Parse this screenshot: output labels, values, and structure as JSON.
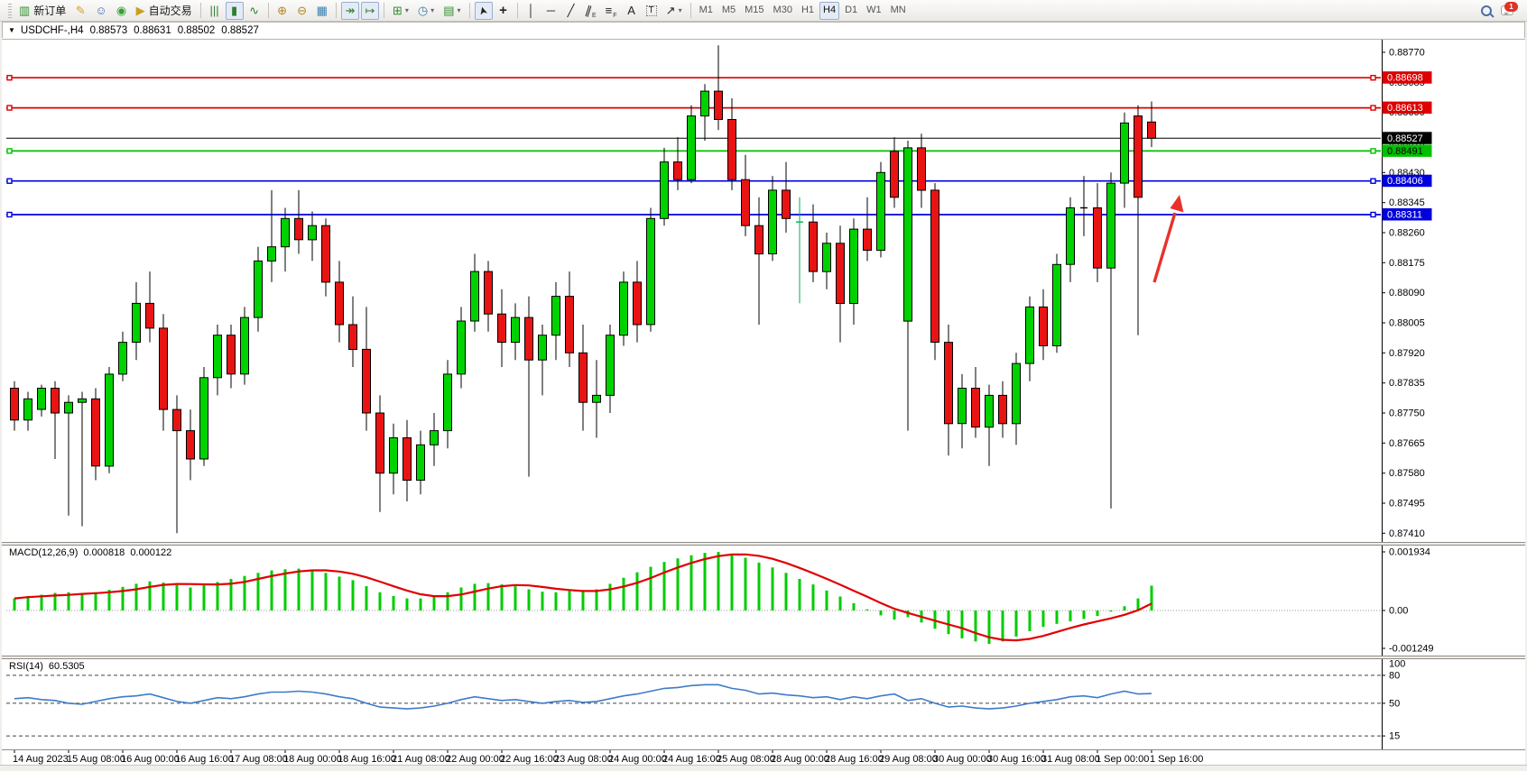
{
  "toolbar": {
    "groups": [
      [
        {
          "name": "new-order-button",
          "glyph": "▥",
          "glyph_color": "#2f8f2f",
          "label": "新订单"
        },
        {
          "name": "crayon-style-button",
          "glyph": "✎",
          "glyph_color": "#d9a21b"
        },
        {
          "name": "community-profile-button",
          "glyph": "☺",
          "glyph_color": "#3b6fb5"
        },
        {
          "name": "signals-broadcast-button",
          "glyph": "◉",
          "glyph_color": "#33a033"
        },
        {
          "name": "auto-trading-button",
          "glyph": "▶",
          "glyph_color": "#c8a020",
          "label": "自动交易",
          "dot_color": "#d23b2f"
        }
      ],
      [
        {
          "name": "bar-chart-type-button",
          "glyph": "|||",
          "glyph_color": "#2f7f2f"
        },
        {
          "name": "candlestick-chart-type-button",
          "glyph": "▮",
          "glyph_color": "#2f7f2f",
          "active": true
        },
        {
          "name": "line-chart-type-button",
          "glyph": "∿",
          "glyph_color": "#2f7f2f"
        }
      ],
      [
        {
          "name": "zoom-in-button",
          "glyph": "⊕",
          "glyph_color": "#b08820"
        },
        {
          "name": "zoom-out-button",
          "glyph": "⊖",
          "glyph_color": "#b08820"
        },
        {
          "name": "tile-windows-button",
          "glyph": "▦",
          "glyph_color": "#3a7fae"
        }
      ],
      [
        {
          "name": "auto-scroll-button",
          "glyph": "↠",
          "glyph_color": "#2f7f2f",
          "active": true
        },
        {
          "name": "chart-shift-button",
          "glyph": "↦",
          "glyph_color": "#2f7f2f",
          "active": true
        }
      ],
      [
        {
          "name": "new-chart-button",
          "glyph": "⊞",
          "glyph_color": "#2f8f2f",
          "caret": true
        },
        {
          "name": "profiles-button",
          "glyph": "◷",
          "glyph_color": "#3a7fae",
          "caret": true
        },
        {
          "name": "indicators-list-button",
          "glyph": "▤",
          "glyph_color": "#2f8f2f",
          "caret": true
        }
      ],
      [
        {
          "name": "cursor-button",
          "glyph": "➤",
          "glyph_color": "#222",
          "active": true
        },
        {
          "name": "crosshair-button",
          "glyph": "+",
          "glyph_color": "#222"
        }
      ],
      [
        {
          "name": "vertical-line-button",
          "glyph": "│",
          "glyph_color": "#222"
        },
        {
          "name": "horizontal-line-button",
          "glyph": "─",
          "glyph_color": "#222"
        },
        {
          "name": "trendline-button",
          "glyph": "╱",
          "glyph_color": "#222"
        },
        {
          "name": "equidistant-channel-button",
          "glyph": "∥",
          "glyph_color": "#222",
          "sub": "E"
        },
        {
          "name": "fibonacci-button",
          "glyph": "≡",
          "glyph_color": "#222",
          "sub": "F"
        },
        {
          "name": "text-button",
          "glyph": "A",
          "glyph_color": "#222"
        },
        {
          "name": "text-label-button",
          "glyph": "T",
          "glyph_color": "#222"
        },
        {
          "name": "arrows-shapes-button",
          "glyph": "↗",
          "glyph_color": "#222",
          "caret": true
        }
      ],
      [
        {
          "name": "timeframe-m1-button",
          "glyph": "M1",
          "tf": true
        },
        {
          "name": "timeframe-m5-button",
          "glyph": "M5",
          "tf": true
        },
        {
          "name": "timeframe-m15-button",
          "glyph": "M15",
          "tf": true
        },
        {
          "name": "timeframe-m30-button",
          "glyph": "M30",
          "tf": true
        },
        {
          "name": "timeframe-h1-button",
          "glyph": "H1",
          "tf": true
        },
        {
          "name": "timeframe-h4-button",
          "glyph": "H4",
          "tf": true,
          "active": true
        },
        {
          "name": "timeframe-d1-button",
          "glyph": "D1",
          "tf": true
        },
        {
          "name": "timeframe-w1-button",
          "glyph": "W1",
          "tf": true
        },
        {
          "name": "timeframe-mn-button",
          "glyph": "MN",
          "tf": true
        }
      ]
    ],
    "chat_badge": "1"
  },
  "chart": {
    "symbol_period": "USDCHF-,H4",
    "open": "0.88573",
    "high": "0.88631",
    "low": "0.88502",
    "close": "0.88527"
  },
  "price_axis": {
    "ticks": [
      "0.88770",
      "0.88685",
      "0.88600",
      "0.88515",
      "0.88430",
      "0.88345",
      "0.88260",
      "0.88175",
      "0.88090",
      "0.88005",
      "0.87920",
      "0.87835",
      "0.87750",
      "0.87665",
      "0.87580",
      "0.87495",
      "0.87410"
    ],
    "badges": [
      {
        "value": "0.88698",
        "color": "#dd0000",
        "text_color": "#ffffff"
      },
      {
        "value": "0.88613",
        "color": "#dd0000",
        "text_color": "#ffffff"
      },
      {
        "value": "0.88527",
        "color": "#000000",
        "text_color": "#ffffff"
      },
      {
        "value": "0.88491",
        "color": "#00c000",
        "text_color": "#000000"
      },
      {
        "value": "0.88406",
        "color": "#0000dd",
        "text_color": "#ffffff"
      },
      {
        "value": "0.88311",
        "color": "#0000dd",
        "text_color": "#ffffff"
      }
    ]
  },
  "chart_data": {
    "type": "candlestick",
    "title": "USDCHF-,H4",
    "current_bar_ohlc": [
      0.88573,
      0.88631,
      0.88502,
      0.88527
    ],
    "ylim": [
      0.87385,
      0.88806
    ],
    "up_color": "#00d200",
    "down_color": "#e81414",
    "horizontal_lines": [
      {
        "price": 0.88698,
        "color": "#dd0000"
      },
      {
        "price": 0.88613,
        "color": "#dd0000"
      },
      {
        "price": 0.88527,
        "color": "#000000",
        "role": "current-price"
      },
      {
        "price": 0.88491,
        "color": "#00c000"
      },
      {
        "price": 0.88406,
        "color": "#0000dd"
      },
      {
        "price": 0.88311,
        "color": "#0000dd"
      }
    ],
    "x_labels": [
      "14 Aug 2023",
      "15 Aug 08:00",
      "16 Aug 00:00",
      "16 Aug 16:00",
      "17 Aug 08:00",
      "18 Aug 00:00",
      "18 Aug 16:00",
      "21 Aug 08:00",
      "22 Aug 00:00",
      "22 Aug 16:00",
      "23 Aug 08:00",
      "24 Aug 00:00",
      "24 Aug 16:00",
      "25 Aug 08:00",
      "28 Aug 00:00",
      "28 Aug 16:00",
      "29 Aug 08:00",
      "30 Aug 00:00",
      "30 Aug 16:00",
      "31 Aug 08:00",
      "1 Sep 00:00",
      "1 Sep 16:00"
    ],
    "candles": [
      [
        0.8782,
        0.8784,
        0.877,
        0.8773
      ],
      [
        0.8773,
        0.8781,
        0.877,
        0.8779
      ],
      [
        0.8776,
        0.8783,
        0.8774,
        0.8782
      ],
      [
        0.8782,
        0.8784,
        0.8762,
        0.8775
      ],
      [
        0.8775,
        0.878,
        0.8746,
        0.8778
      ],
      [
        0.8778,
        0.8781,
        0.8743,
        0.8779
      ],
      [
        0.8779,
        0.8782,
        0.8756,
        0.876
      ],
      [
        0.876,
        0.8788,
        0.8758,
        0.8786
      ],
      [
        0.8786,
        0.8798,
        0.8784,
        0.8795
      ],
      [
        0.8795,
        0.8812,
        0.879,
        0.8806
      ],
      [
        0.8806,
        0.8815,
        0.8795,
        0.8799
      ],
      [
        0.8799,
        0.8803,
        0.877,
        0.8776
      ],
      [
        0.8776,
        0.878,
        0.8741,
        0.877
      ],
      [
        0.877,
        0.8776,
        0.8756,
        0.8762
      ],
      [
        0.8762,
        0.8788,
        0.876,
        0.8785
      ],
      [
        0.8785,
        0.88,
        0.878,
        0.8797
      ],
      [
        0.8797,
        0.88,
        0.8782,
        0.8786
      ],
      [
        0.8786,
        0.8805,
        0.8783,
        0.8802
      ],
      [
        0.8802,
        0.8822,
        0.8798,
        0.8818
      ],
      [
        0.8818,
        0.8838,
        0.8812,
        0.8822
      ],
      [
        0.8822,
        0.8833,
        0.8815,
        0.883
      ],
      [
        0.883,
        0.8838,
        0.882,
        0.8824
      ],
      [
        0.8824,
        0.8832,
        0.8818,
        0.8828
      ],
      [
        0.8828,
        0.883,
        0.8808,
        0.8812
      ],
      [
        0.8812,
        0.8818,
        0.8795,
        0.88
      ],
      [
        0.88,
        0.8808,
        0.8788,
        0.8793
      ],
      [
        0.8793,
        0.8805,
        0.877,
        0.8775
      ],
      [
        0.8775,
        0.878,
        0.8747,
        0.8758
      ],
      [
        0.8758,
        0.8772,
        0.8752,
        0.8768
      ],
      [
        0.8768,
        0.8773,
        0.875,
        0.8756
      ],
      [
        0.8756,
        0.877,
        0.8752,
        0.8766
      ],
      [
        0.8766,
        0.8775,
        0.876,
        0.877
      ],
      [
        0.877,
        0.879,
        0.8765,
        0.8786
      ],
      [
        0.8786,
        0.8805,
        0.8782,
        0.8801
      ],
      [
        0.8801,
        0.882,
        0.8798,
        0.8815
      ],
      [
        0.8815,
        0.8818,
        0.8798,
        0.8803
      ],
      [
        0.8803,
        0.881,
        0.8788,
        0.8795
      ],
      [
        0.8795,
        0.8806,
        0.879,
        0.8802
      ],
      [
        0.8802,
        0.8808,
        0.8757,
        0.879
      ],
      [
        0.879,
        0.88,
        0.878,
        0.8797
      ],
      [
        0.8797,
        0.8812,
        0.879,
        0.8808
      ],
      [
        0.8808,
        0.8815,
        0.8788,
        0.8792
      ],
      [
        0.8792,
        0.88,
        0.877,
        0.8778
      ],
      [
        0.8778,
        0.879,
        0.8768,
        0.878
      ],
      [
        0.878,
        0.88,
        0.8775,
        0.8797
      ],
      [
        0.8797,
        0.8815,
        0.8794,
        0.8812
      ],
      [
        0.8812,
        0.8818,
        0.8795,
        0.88
      ],
      [
        0.88,
        0.8833,
        0.8798,
        0.883
      ],
      [
        0.883,
        0.885,
        0.8828,
        0.8846
      ],
      [
        0.8846,
        0.8853,
        0.8838,
        0.8841
      ],
      [
        0.8841,
        0.8862,
        0.884,
        0.8859
      ],
      [
        0.8859,
        0.8868,
        0.8852,
        0.8866
      ],
      [
        0.8866,
        0.8879,
        0.8855,
        0.8858
      ],
      [
        0.8858,
        0.8864,
        0.8838,
        0.8841
      ],
      [
        0.8841,
        0.8848,
        0.8825,
        0.8828
      ],
      [
        0.8828,
        0.8836,
        0.88,
        0.882
      ],
      [
        0.882,
        0.8842,
        0.8818,
        0.8838
      ],
      [
        0.8838,
        0.8846,
        0.8826,
        0.883
      ],
      [
        0.8829,
        0.8836,
        0.8806,
        0.8829
      ],
      [
        0.8829,
        0.8834,
        0.8812,
        0.8815
      ],
      [
        0.8815,
        0.8826,
        0.881,
        0.8823
      ],
      [
        0.8823,
        0.8828,
        0.8795,
        0.8806
      ],
      [
        0.8806,
        0.883,
        0.88,
        0.8827
      ],
      [
        0.8827,
        0.8836,
        0.8818,
        0.8821
      ],
      [
        0.8821,
        0.8846,
        0.8819,
        0.8843
      ],
      [
        0.8849,
        0.8853,
        0.8833,
        0.8836
      ],
      [
        0.8801,
        0.8852,
        0.877,
        0.885
      ],
      [
        0.885,
        0.8854,
        0.8833,
        0.8838
      ],
      [
        0.8838,
        0.884,
        0.879,
        0.8795
      ],
      [
        0.8795,
        0.88,
        0.8763,
        0.8772
      ],
      [
        0.8772,
        0.8786,
        0.8765,
        0.8782
      ],
      [
        0.8782,
        0.8788,
        0.8768,
        0.8771
      ],
      [
        0.8771,
        0.8783,
        0.876,
        0.878
      ],
      [
        0.878,
        0.8784,
        0.8768,
        0.8772
      ],
      [
        0.8772,
        0.8792,
        0.8766,
        0.8789
      ],
      [
        0.8789,
        0.8808,
        0.8784,
        0.8805
      ],
      [
        0.8805,
        0.881,
        0.879,
        0.8794
      ],
      [
        0.8794,
        0.882,
        0.8792,
        0.8817
      ],
      [
        0.8817,
        0.8836,
        0.8812,
        0.8833
      ],
      [
        0.8833,
        0.8842,
        0.8825,
        0.8833
      ],
      [
        0.8833,
        0.884,
        0.8812,
        0.8816
      ],
      [
        0.8816,
        0.8843,
        0.8748,
        0.884
      ],
      [
        0.884,
        0.886,
        0.8833,
        0.8857
      ],
      [
        0.8859,
        0.8862,
        0.8797,
        0.8836
      ],
      [
        0.88573,
        0.88631,
        0.88502,
        0.88527
      ]
    ],
    "special_markers": {
      "58": "doji-green",
      "79": "doji-black"
    },
    "annotations": [
      {
        "type": "up-arrow",
        "color": "#e8322a",
        "points_at_price": 0.88311
      }
    ],
    "indicators": {
      "macd": {
        "label": "MACD(12,26,9)",
        "main_value": "0.000818",
        "signal_value": "0.000122",
        "axis": [
          "0.001934",
          "0.00",
          "-0.001249"
        ],
        "histogram_color": "#00cc00",
        "signal_color": "#e00000",
        "histogram": [
          0.0004,
          0.00048,
          0.00052,
          0.00058,
          0.0006,
          0.00055,
          0.0006,
          0.00068,
          0.00078,
          0.00088,
          0.00096,
          0.00092,
          0.00084,
          0.00076,
          0.00084,
          0.00094,
          0.00104,
          0.00114,
          0.00124,
          0.00132,
          0.00136,
          0.00138,
          0.00132,
          0.00124,
          0.00112,
          0.001,
          0.0008,
          0.0006,
          0.00048,
          0.0004,
          0.0004,
          0.00048,
          0.0006,
          0.00076,
          0.00088,
          0.0009,
          0.00086,
          0.0008,
          0.0007,
          0.00062,
          0.0006,
          0.00066,
          0.00064,
          0.0007,
          0.00088,
          0.00108,
          0.00126,
          0.00144,
          0.0016,
          0.00172,
          0.00182,
          0.0019,
          0.00193,
          0.00186,
          0.00174,
          0.00158,
          0.00142,
          0.00124,
          0.00104,
          0.00086,
          0.00066,
          0.00046,
          0.00024,
          4e-05,
          -0.00016,
          -0.0003,
          -0.00022,
          -0.0004,
          -0.0006,
          -0.00078,
          -0.00092,
          -0.00102,
          -0.0011,
          -0.00102,
          -0.00086,
          -0.00068,
          -0.00054,
          -0.00044,
          -0.00036,
          -0.00028,
          -0.00018,
          -4e-05,
          0.00014,
          0.0004,
          0.000818
        ]
      },
      "rsi": {
        "label": "RSI(14)",
        "value": "60.5305",
        "axis": [
          "100",
          "80",
          "50",
          "15"
        ],
        "levels": [
          80,
          50,
          15
        ],
        "line_color": "#3e7bc8",
        "series": [
          55,
          56,
          54,
          53,
          50,
          49,
          52,
          55,
          57,
          58,
          60,
          56,
          52,
          50,
          53,
          56,
          55,
          57,
          60,
          62,
          62,
          63,
          62,
          60,
          57,
          55,
          50,
          46,
          45,
          44,
          45,
          47,
          50,
          54,
          57,
          55,
          53,
          54,
          52,
          50,
          52,
          53,
          51,
          52,
          55,
          58,
          60,
          63,
          66,
          67,
          69,
          70,
          70,
          66,
          64,
          60,
          61,
          59,
          58,
          56,
          57,
          54,
          57,
          55,
          58,
          60,
          53,
          55,
          50,
          46,
          47,
          45,
          44,
          45,
          47,
          50,
          52,
          54,
          57,
          58,
          56,
          60,
          63,
          60,
          60.53
        ]
      }
    }
  }
}
